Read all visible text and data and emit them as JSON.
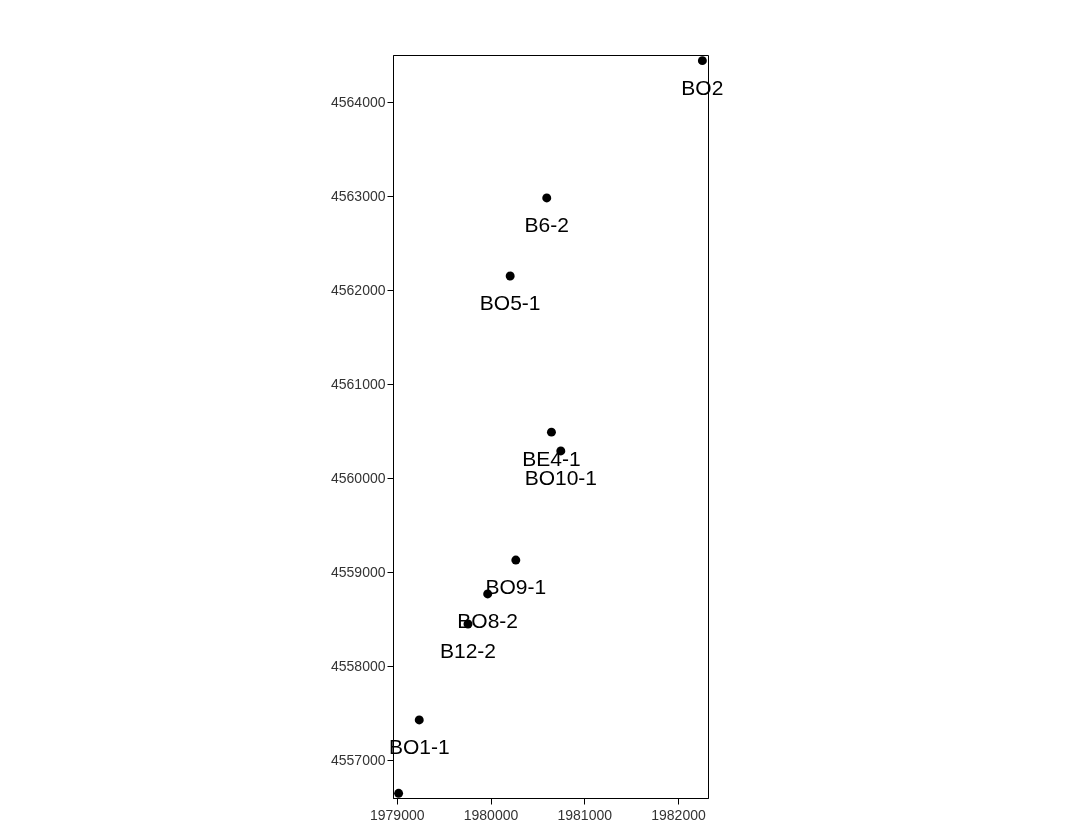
{
  "chart_data": {
    "type": "scatter",
    "x": [
      1982260,
      1980600,
      1980210,
      1980650,
      1980750,
      1980270,
      1979970,
      1979760,
      1979240,
      1979020
    ],
    "values": [
      4564440,
      4562980,
      4562150,
      4560490,
      4560290,
      4559130,
      4558770,
      4558450,
      4557430,
      4556650
    ],
    "value_labels": [
      "BO2",
      "B6-2",
      "BO5-1",
      "BE4-1",
      "BO10-1",
      "BO9-1",
      "BO8-2",
      "B12-2",
      "BO1-1",
      null
    ],
    "color": "#000000",
    "marker": "circle",
    "grid": false,
    "xlim": [
      1978960,
      1982320
    ],
    "ylim": [
      4556600,
      4564500
    ],
    "xticks": [
      1979000,
      1980000,
      1981000,
      1982000
    ],
    "yticks": [
      4557000,
      4558000,
      4559000,
      4560000,
      4561000,
      4562000,
      4563000,
      4564000
    ]
  }
}
